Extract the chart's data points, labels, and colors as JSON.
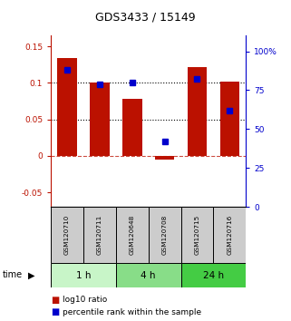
{
  "title": "GDS3433 / 15149",
  "samples": [
    "GSM120710",
    "GSM120711",
    "GSM120648",
    "GSM120708",
    "GSM120715",
    "GSM120716"
  ],
  "log10_ratio": [
    0.134,
    0.101,
    0.078,
    -0.005,
    0.121,
    0.102
  ],
  "percentile_rank": [
    88,
    79,
    80,
    42,
    82,
    62
  ],
  "time_groups": [
    {
      "label": "1 h",
      "start": 0,
      "end": 2,
      "color": "#c8f5c8"
    },
    {
      "label": "4 h",
      "start": 2,
      "end": 4,
      "color": "#88dd88"
    },
    {
      "label": "24 h",
      "start": 4,
      "end": 6,
      "color": "#44cc44"
    }
  ],
  "bar_color": "#bb1100",
  "dot_color": "#0000cc",
  "left_ylim": [
    -0.07,
    0.165
  ],
  "right_ylim": [
    0,
    110.25
  ],
  "left_yticks": [
    -0.05,
    0,
    0.05,
    0.1,
    0.15
  ],
  "left_yticklabels": [
    "-0.05",
    "0",
    "0.05",
    "0.1",
    "0.15"
  ],
  "right_yticks": [
    0,
    25,
    50,
    75,
    100
  ],
  "right_yticklabels": [
    "0",
    "25",
    "50",
    "75",
    "100%"
  ],
  "hlines_y": [
    0.05,
    0.1
  ],
  "zero_line_y": 0.0,
  "sample_box_color": "#cccccc",
  "legend_items": [
    "log10 ratio",
    "percentile rank within the sample"
  ],
  "legend_colors": [
    "#bb1100",
    "#0000cc"
  ]
}
